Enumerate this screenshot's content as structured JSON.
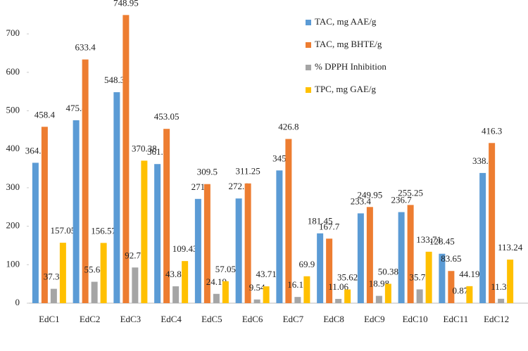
{
  "chart_data": {
    "type": "bar",
    "categories": [
      "EdC1",
      "EdC2",
      "EdC3",
      "EdC4",
      "EdC5",
      "EdC6",
      "EdC7",
      "EdC8",
      "EdC9",
      "EdC10",
      "EdC11",
      "EdC12"
    ],
    "series": [
      {
        "name": "TAC, mg AAE/g",
        "color": "#5b9bd5",
        "values": [
          364.9,
          475.4,
          548.35,
          361.6,
          271,
          272.1,
          345,
          181.45,
          233.4,
          236.7,
          128.45,
          338.4
        ]
      },
      {
        "name": "TAC, mg BHTE/g",
        "color": "#ed7d31",
        "values": [
          458.4,
          633.4,
          748.95,
          453.05,
          309.5,
          311.25,
          426.8,
          167.7,
          249.95,
          255.25,
          83.65,
          416.3
        ]
      },
      {
        "name": "% DPPH Inhibition",
        "color": "#a5a5a5",
        "values": [
          37.31,
          55.64,
          92.73,
          43.82,
          24.19,
          9.54,
          16.16,
          11.06,
          18.98,
          35.79,
          0.87,
          11.39
        ]
      },
      {
        "name": "TPC, mg GAE/g",
        "color": "#ffc000",
        "values": [
          157.05,
          156.57,
          370.38,
          109.43,
          57.05,
          43.71,
          69.9,
          35.62,
          50.38,
          133.71,
          44.19,
          113.24
        ]
      }
    ],
    "ylim": [
      0,
      788
    ],
    "yticks": [
      0,
      100,
      200,
      300,
      400,
      500,
      600,
      700
    ],
    "grid": false,
    "legend": "top-right"
  }
}
